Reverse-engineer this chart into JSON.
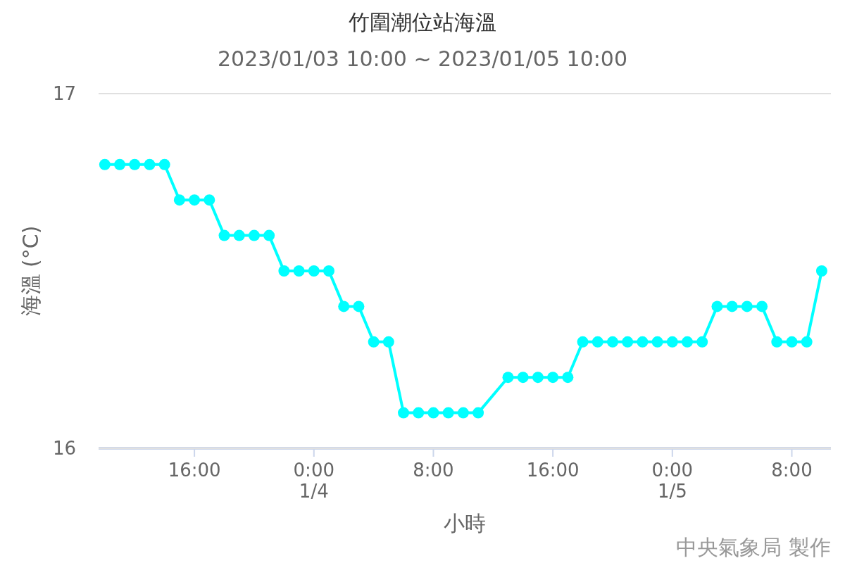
{
  "chart_data": {
    "type": "line",
    "title": "竹圍潮位站海溫",
    "subtitle": "2023/01/03 10:00 ~ 2023/01/05 10:00",
    "xlabel": "小時",
    "ylabel": "海溫 (°C)",
    "annotations": [
      "中央氣象局 製作"
    ],
    "series": [
      {
        "color": "#00ffff",
        "x": [
          "2023-01-03T10:00",
          "2023-01-03T11:00",
          "2023-01-03T12:00",
          "2023-01-03T13:00",
          "2023-01-03T14:00",
          "2023-01-03T15:00",
          "2023-01-03T16:00",
          "2023-01-03T17:00",
          "2023-01-03T18:00",
          "2023-01-03T19:00",
          "2023-01-03T20:00",
          "2023-01-03T21:00",
          "2023-01-03T22:00",
          "2023-01-03T23:00",
          "2023-01-04T00:00",
          "2023-01-04T01:00",
          "2023-01-04T02:00",
          "2023-01-04T03:00",
          "2023-01-04T04:00",
          "2023-01-04T05:00",
          "2023-01-04T06:00",
          "2023-01-04T07:00",
          "2023-01-04T08:00",
          "2023-01-04T09:00",
          "2023-01-04T10:00",
          "2023-01-04T11:00",
          "2023-01-04T13:00",
          "2023-01-04T14:00",
          "2023-01-04T15:00",
          "2023-01-04T16:00",
          "2023-01-04T17:00",
          "2023-01-04T18:00",
          "2023-01-04T19:00",
          "2023-01-04T20:00",
          "2023-01-04T21:00",
          "2023-01-04T22:00",
          "2023-01-04T23:00",
          "2023-01-05T00:00",
          "2023-01-05T01:00",
          "2023-01-05T02:00",
          "2023-01-05T03:00",
          "2023-01-05T04:00",
          "2023-01-05T05:00",
          "2023-01-05T06:00",
          "2023-01-05T07:00",
          "2023-01-05T08:00",
          "2023-01-05T09:00",
          "2023-01-05T10:00"
        ],
        "values": [
          16.8,
          16.8,
          16.8,
          16.8,
          16.8,
          16.7,
          16.7,
          16.7,
          16.6,
          16.6,
          16.6,
          16.6,
          16.5,
          16.5,
          16.5,
          16.5,
          16.4,
          16.4,
          16.3,
          16.3,
          16.1,
          16.1,
          16.1,
          16.1,
          16.1,
          16.1,
          16.2,
          16.2,
          16.2,
          16.2,
          16.2,
          16.3,
          16.3,
          16.3,
          16.3,
          16.3,
          16.3,
          16.3,
          16.3,
          16.3,
          16.4,
          16.4,
          16.4,
          16.4,
          16.3,
          16.3,
          16.3,
          16.5
        ]
      }
    ],
    "xlim": [
      "2023-01-03T09:35",
      "2023-01-05T10:37"
    ],
    "xticks": [
      {
        "value": "2023-01-03T16:00",
        "label": "16:00"
      },
      {
        "value": "2023-01-04T00:00",
        "label": "0:00\n1/4"
      },
      {
        "value": "2023-01-04T08:00",
        "label": "8:00"
      },
      {
        "value": "2023-01-04T16:00",
        "label": "16:00"
      },
      {
        "value": "2023-01-05T00:00",
        "label": "0:00\n1/5"
      },
      {
        "value": "2023-01-05T08:00",
        "label": "8:00"
      }
    ],
    "ylim": [
      16,
      17
    ],
    "yticks": [
      16,
      17
    ],
    "grid": "y",
    "marker": "circle",
    "line_style": "solid"
  }
}
